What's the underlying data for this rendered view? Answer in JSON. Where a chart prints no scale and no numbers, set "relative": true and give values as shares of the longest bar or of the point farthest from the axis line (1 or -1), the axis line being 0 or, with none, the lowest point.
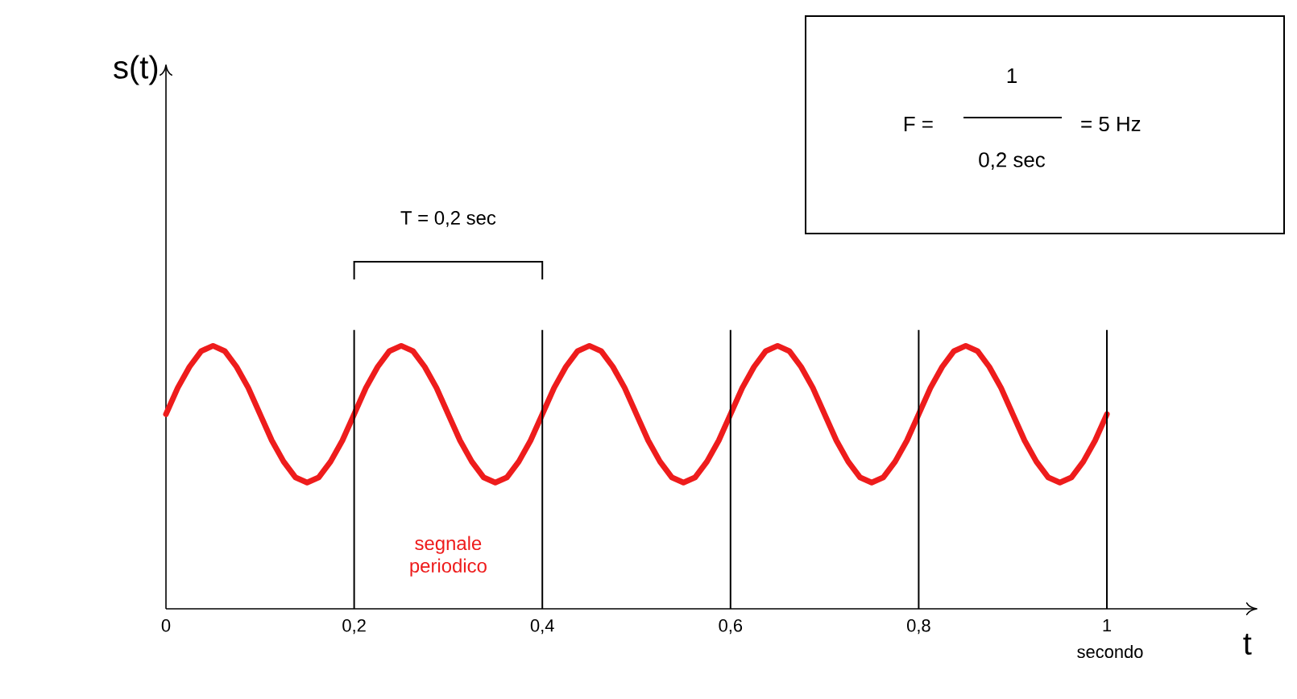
{
  "chart_data": {
    "type": "line",
    "relative": true,
    "xlabel": "t",
    "x": [
      0,
      0.0125,
      0.025,
      0.0375,
      0.05,
      0.0625,
      0.075,
      0.0875,
      0.1,
      0.1125,
      0.125,
      0.1375,
      0.15,
      0.1625,
      0.175,
      0.1875,
      0.2,
      0.2125,
      0.225,
      0.2375,
      0.25,
      0.2625,
      0.275,
      0.2875,
      0.3,
      0.3125,
      0.325,
      0.3375,
      0.35,
      0.3625,
      0.375,
      0.3875,
      0.4,
      0.4125,
      0.425,
      0.4375,
      0.45,
      0.4625,
      0.475,
      0.4875,
      0.5,
      0.5125,
      0.525,
      0.5375,
      0.55,
      0.5625,
      0.575,
      0.5875,
      0.6,
      0.6125,
      0.625,
      0.6375,
      0.65,
      0.6625,
      0.675,
      0.6875,
      0.7,
      0.7125,
      0.725,
      0.7375,
      0.75,
      0.7625,
      0.775,
      0.7875,
      0.8,
      0.8125,
      0.825,
      0.8375,
      0.85,
      0.8625,
      0.875,
      0.8875,
      0.9,
      0.9125,
      0.925,
      0.9375,
      0.95,
      0.9625,
      0.975,
      0.9875,
      1
    ],
    "series": [
      {
        "name": "segnale periodico",
        "color": "#ee1c1c",
        "values": [
          0.74,
          0.84,
          0.92,
          0.98,
          1,
          0.98,
          0.92,
          0.84,
          0.74,
          0.64,
          0.56,
          0.5,
          0.48,
          0.5,
          0.56,
          0.64,
          0.74,
          0.84,
          0.92,
          0.98,
          1,
          0.98,
          0.92,
          0.84,
          0.74,
          0.64,
          0.56,
          0.5,
          0.48,
          0.5,
          0.56,
          0.64,
          0.74,
          0.84,
          0.92,
          0.98,
          1,
          0.98,
          0.92,
          0.84,
          0.74,
          0.64,
          0.56,
          0.5,
          0.48,
          0.5,
          0.56,
          0.64,
          0.74,
          0.84,
          0.92,
          0.98,
          1,
          0.98,
          0.92,
          0.84,
          0.74,
          0.64,
          0.56,
          0.5,
          0.48,
          0.5,
          0.56,
          0.64,
          0.74,
          0.84,
          0.92,
          0.98,
          1,
          0.98,
          0.92,
          0.84,
          0.74,
          0.64,
          0.56,
          0.5,
          0.48,
          0.5,
          0.56,
          0.64,
          0.74
        ]
      }
    ],
    "xlim": [
      0,
      1.16
    ],
    "xticks": [
      {
        "value": 0,
        "label": "0"
      },
      {
        "value": 0.2,
        "label": "0,2"
      },
      {
        "value": 0.4,
        "label": "0,4"
      },
      {
        "value": 0.6,
        "label": "0,6"
      },
      {
        "value": 0.8,
        "label": "0,8"
      },
      {
        "value": 1,
        "label": "1"
      }
    ],
    "ref_lines": [
      {
        "axis": "x",
        "value": 0.2,
        "color": "#000000"
      },
      {
        "axis": "x",
        "value": 0.4,
        "color": "#000000"
      },
      {
        "axis": "x",
        "value": 0.6,
        "color": "#000000"
      },
      {
        "axis": "x",
        "value": 0.8,
        "color": "#000000"
      },
      {
        "axis": "x",
        "value": 1,
        "color": "#000000"
      }
    ],
    "annotations": [
      "T = 0,2 sec",
      "secondo",
      "F =",
      "1",
      "0,2 sec",
      "= 5 Hz",
      "s(t)"
    ],
    "grid": false,
    "legend": false,
    "marker": "none",
    "line_style": "solid"
  }
}
